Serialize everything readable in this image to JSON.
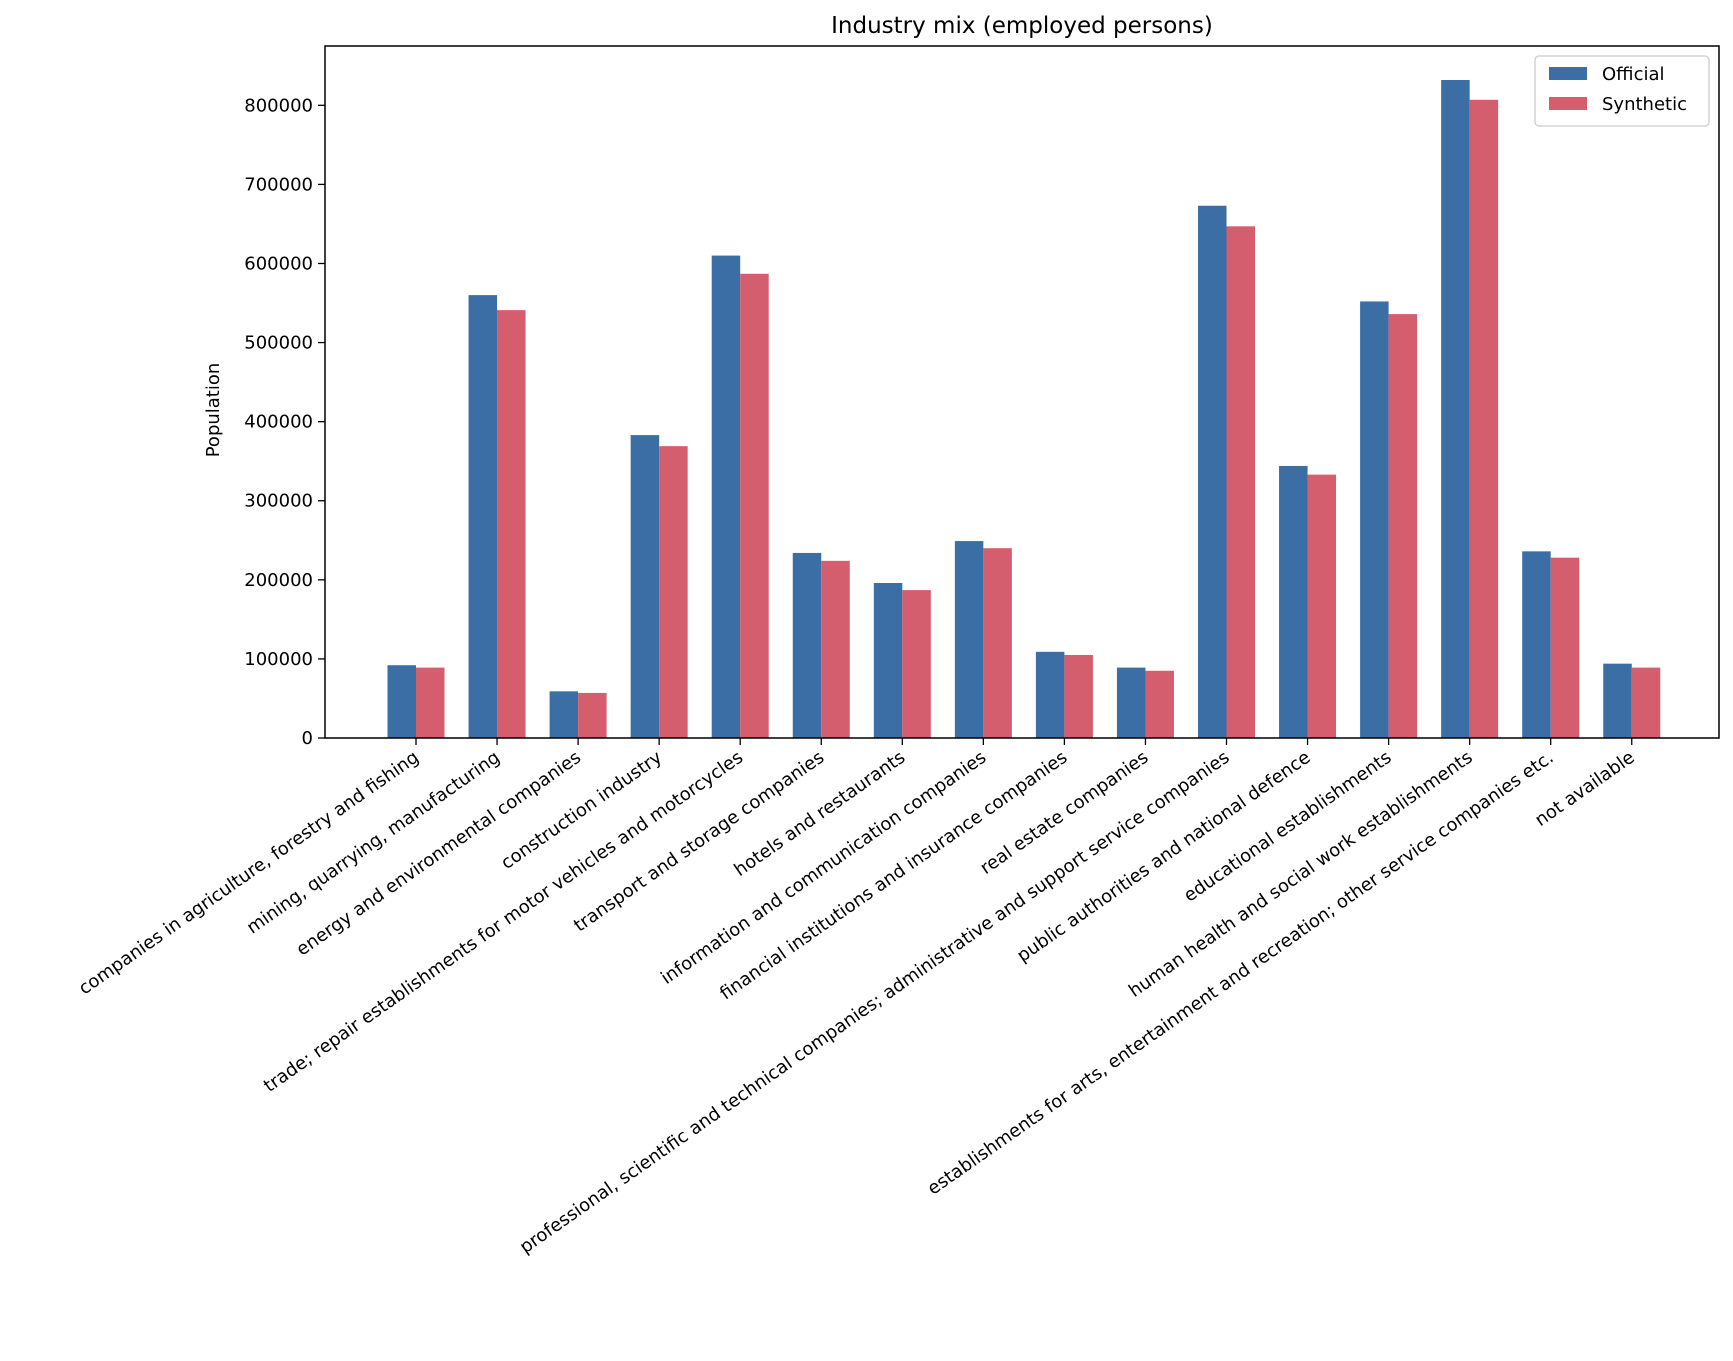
{
  "chart_data": {
    "type": "bar",
    "title": "Industry mix (employed persons)",
    "xlabel": "",
    "ylabel": "Population",
    "ylim": [
      0,
      875000
    ],
    "yticks": [
      0,
      100000,
      200000,
      300000,
      400000,
      500000,
      600000,
      700000,
      800000
    ],
    "ytick_labels": [
      "0",
      "100000",
      "200000",
      "300000",
      "400000",
      "500000",
      "600000",
      "700000",
      "800000"
    ],
    "grid": false,
    "legend_position": "top-right",
    "categories": [
      "companies in agriculture, forestry and fishing",
      "mining, quarrying, manufacturing",
      "energy and environmental companies",
      "construction industry",
      "trade; repair establishments for motor vehicles and motorcycles",
      "transport and storage companies",
      "hotels and restaurants",
      "information and communication companies",
      "financial institutions and insurance companies",
      "real estate companies",
      "professional, scientific and technical companies; administrative and support service companies",
      "public authorities and national defence",
      "educational establishments",
      "human health and social work establishments",
      "establishments for arts, entertainment and recreation; other service companies etc.",
      "not available"
    ],
    "series": [
      {
        "name": "Official",
        "color": "#3a6ea5",
        "values": [
          92000,
          560000,
          59000,
          383000,
          610000,
          234000,
          196000,
          249000,
          109000,
          89000,
          673000,
          344000,
          552000,
          832000,
          236000,
          94000
        ]
      },
      {
        "name": "Synthetic",
        "color": "#d45d6e",
        "values": [
          89000,
          541000,
          57000,
          369000,
          587000,
          224000,
          187000,
          240000,
          105000,
          85000,
          647000,
          333000,
          536000,
          807000,
          228000,
          89000
        ]
      }
    ]
  }
}
